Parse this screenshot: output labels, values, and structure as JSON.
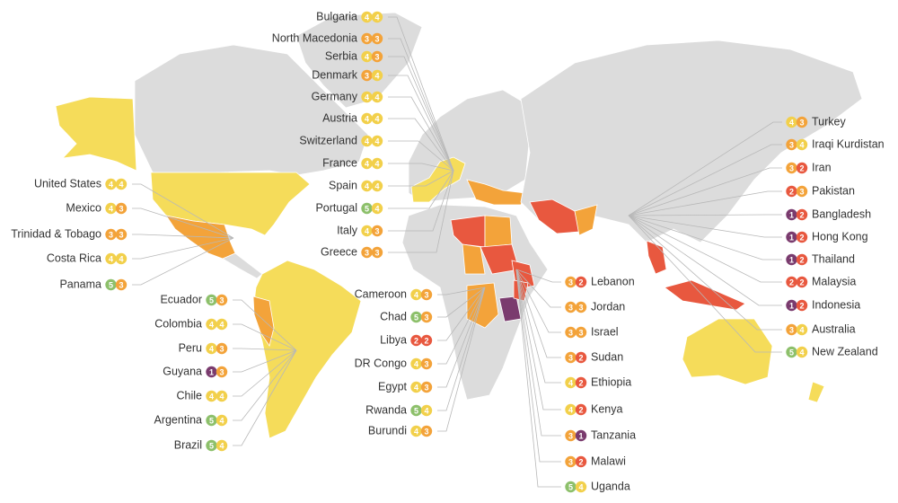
{
  "score_colors": {
    "1": "#7a3b6e",
    "2": "#e8583f",
    "3": "#f3a33a",
    "4": "#f2d04b",
    "5": "#8dc06b"
  },
  "groups": [
    {
      "countries": [
        {
          "name": "Bulgaria",
          "scores": [
            4,
            4
          ]
        },
        {
          "name": "North Macedonia",
          "scores": [
            3,
            3
          ]
        },
        {
          "name": "Serbia",
          "scores": [
            4,
            3
          ]
        },
        {
          "name": "Denmark",
          "scores": [
            3,
            4
          ]
        },
        {
          "name": "Germany",
          "scores": [
            4,
            4
          ]
        },
        {
          "name": "Austria",
          "scores": [
            4,
            4
          ]
        },
        {
          "name": "Switzerland",
          "scores": [
            4,
            4
          ]
        },
        {
          "name": "France",
          "scores": [
            4,
            4
          ]
        },
        {
          "name": "Spain",
          "scores": [
            4,
            4
          ]
        },
        {
          "name": "Portugal",
          "scores": [
            5,
            4
          ]
        },
        {
          "name": "Italy",
          "scores": [
            4,
            3
          ]
        },
        {
          "name": "Greece",
          "scores": [
            3,
            3
          ]
        }
      ]
    },
    {
      "countries": [
        {
          "name": "United States",
          "scores": [
            4,
            4
          ]
        },
        {
          "name": "Mexico",
          "scores": [
            4,
            3
          ]
        },
        {
          "name": "Trinidad & Tobago",
          "scores": [
            3,
            3
          ]
        },
        {
          "name": "Costa Rica",
          "scores": [
            4,
            4
          ]
        },
        {
          "name": "Panama",
          "scores": [
            5,
            3
          ]
        }
      ]
    },
    {
      "countries": [
        {
          "name": "Ecuador",
          "scores": [
            5,
            3
          ]
        },
        {
          "name": "Colombia",
          "scores": [
            4,
            4
          ]
        },
        {
          "name": "Peru",
          "scores": [
            4,
            3
          ]
        },
        {
          "name": "Guyana",
          "scores": [
            1,
            3
          ]
        },
        {
          "name": "Chile",
          "scores": [
            4,
            4
          ]
        },
        {
          "name": "Argentina",
          "scores": [
            5,
            4
          ]
        },
        {
          "name": "Brazil",
          "scores": [
            5,
            4
          ]
        }
      ]
    },
    {
      "countries": [
        {
          "name": "Cameroon",
          "scores": [
            4,
            3
          ]
        },
        {
          "name": "Chad",
          "scores": [
            5,
            3
          ]
        },
        {
          "name": "Libya",
          "scores": [
            2,
            2
          ]
        },
        {
          "name": "DR Congo",
          "scores": [
            4,
            3
          ]
        },
        {
          "name": "Egypt",
          "scores": [
            4,
            3
          ]
        },
        {
          "name": "Rwanda",
          "scores": [
            5,
            4
          ]
        },
        {
          "name": "Burundi",
          "scores": [
            4,
            3
          ]
        }
      ]
    },
    {
      "countries": [
        {
          "name": "Lebanon",
          "scores": [
            3,
            2
          ]
        },
        {
          "name": "Jordan",
          "scores": [
            3,
            3
          ]
        },
        {
          "name": "Israel",
          "scores": [
            3,
            3
          ]
        },
        {
          "name": "Sudan",
          "scores": [
            3,
            2
          ]
        },
        {
          "name": "Ethiopia",
          "scores": [
            4,
            2
          ]
        },
        {
          "name": "Kenya",
          "scores": [
            4,
            2
          ]
        },
        {
          "name": "Tanzania",
          "scores": [
            3,
            1
          ]
        },
        {
          "name": "Malawi",
          "scores": [
            3,
            2
          ]
        },
        {
          "name": "Uganda",
          "scores": [
            5,
            4
          ]
        }
      ]
    },
    {
      "countries": [
        {
          "name": "Turkey",
          "scores": [
            4,
            3
          ]
        },
        {
          "name": "Iraqi Kurdistan",
          "scores": [
            3,
            4
          ]
        },
        {
          "name": "Iran",
          "scores": [
            3,
            2
          ]
        },
        {
          "name": "Pakistan",
          "scores": [
            2,
            3
          ]
        },
        {
          "name": "Bangladesh",
          "scores": [
            1,
            2
          ]
        },
        {
          "name": "Hong Kong",
          "scores": [
            1,
            2
          ]
        },
        {
          "name": "Thailand",
          "scores": [
            1,
            2
          ]
        },
        {
          "name": "Malaysia",
          "scores": [
            2,
            2
          ]
        },
        {
          "name": "Indonesia",
          "scores": [
            1,
            2
          ]
        },
        {
          "name": "Australia",
          "scores": [
            3,
            4
          ]
        },
        {
          "name": "New Zealand",
          "scores": [
            5,
            4
          ]
        }
      ]
    }
  ]
}
